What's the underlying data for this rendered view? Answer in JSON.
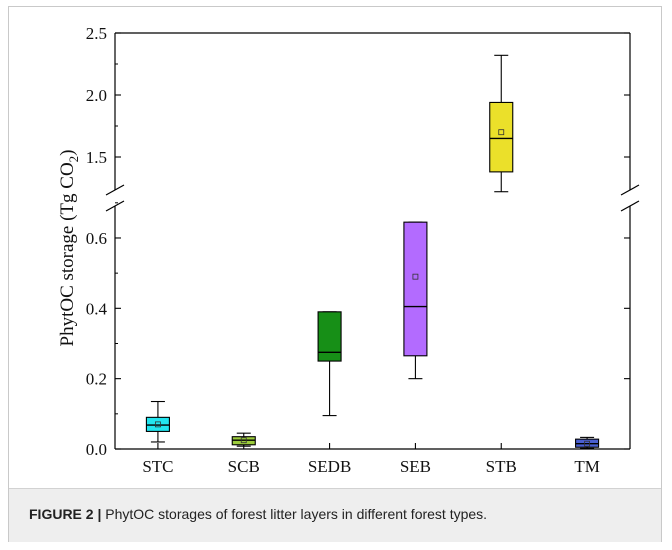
{
  "caption": {
    "label": "FIGURE 2 |",
    "text": " PhytOC storages of forest litter layers in different forest types."
  },
  "chart_data": {
    "type": "box",
    "ylabel": "PhytOC storage (Tg CO",
    "ylabel_sub": "2",
    "ylabel_close": ")",
    "categories": [
      "STC",
      "SCB",
      "SEDB",
      "SEB",
      "STB",
      "TM"
    ],
    "axis_break": true,
    "lower_segment": {
      "ylim": [
        0.0,
        0.7
      ],
      "ticks": [
        "0.0",
        "0.2",
        "0.4",
        "0.6"
      ]
    },
    "upper_segment": {
      "ylim": [
        1.2,
        2.5
      ],
      "ticks": [
        "1.5",
        "2.0",
        "2.5"
      ]
    },
    "boxes": [
      {
        "name": "STC",
        "whisker_low": 0.02,
        "q1": 0.05,
        "median": 0.068,
        "q3": 0.09,
        "whisker_high": 0.135,
        "mean": 0.07,
        "color": "#22e5ef"
      },
      {
        "name": "SCB",
        "whisker_low": 0.008,
        "q1": 0.012,
        "median": 0.025,
        "q3": 0.035,
        "whisker_high": 0.045,
        "mean": 0.025,
        "color": "#9ccc3c"
      },
      {
        "name": "SEDB",
        "whisker_low": 0.095,
        "q1": 0.25,
        "median": 0.275,
        "q3": 0.39,
        "whisker_high": 0.39,
        "mean": null,
        "color": "#178f17"
      },
      {
        "name": "SEB",
        "whisker_low": 0.2,
        "q1": 0.265,
        "median": 0.405,
        "q3": 0.645,
        "whisker_high": 0.645,
        "mean": 0.49,
        "color": "#b36bff"
      },
      {
        "name": "STB",
        "whisker_low": 1.22,
        "q1": 1.38,
        "median": 1.65,
        "q3": 1.94,
        "whisker_high": 2.32,
        "mean": 1.7,
        "color": "#ebe02a"
      },
      {
        "name": "TM",
        "whisker_low": 0.002,
        "q1": 0.005,
        "median": 0.015,
        "q3": 0.028,
        "whisker_high": 0.033,
        "mean": 0.015,
        "color": "#4a5fd0"
      }
    ]
  }
}
